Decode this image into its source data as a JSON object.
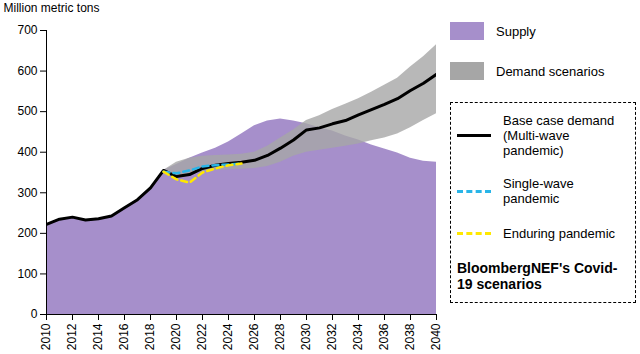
{
  "chart_data": {
    "type": "area",
    "y_label": "Million metric tons",
    "x": [
      2010,
      2011,
      2012,
      2013,
      2014,
      2015,
      2016,
      2017,
      2018,
      2019,
      2020,
      2021,
      2022,
      2023,
      2024,
      2025,
      2026,
      2027,
      2028,
      2029,
      2030,
      2031,
      2032,
      2033,
      2034,
      2035,
      2036,
      2037,
      2038,
      2039,
      2040
    ],
    "xlim": [
      2010,
      2040
    ],
    "xticks": [
      2010,
      2012,
      2014,
      2016,
      2018,
      2020,
      2022,
      2024,
      2026,
      2028,
      2030,
      2032,
      2034,
      2036,
      2038,
      2040
    ],
    "ylim": [
      0,
      700
    ],
    "yticks": [
      0,
      100,
      200,
      300,
      400,
      500,
      600,
      700
    ],
    "grid": false,
    "legend": "right",
    "series": [
      {
        "name": "Supply",
        "type": "area",
        "color": "#a68fcb",
        "values": [
          222,
          235,
          240,
          233,
          236,
          243,
          263,
          283,
          312,
          355,
          370,
          385,
          398,
          410,
          425,
          445,
          465,
          477,
          482,
          477,
          470,
          460,
          452,
          440,
          430,
          418,
          408,
          398,
          385,
          378,
          375
        ]
      },
      {
        "name": "Demand scenarios",
        "type": "band",
        "color": "#a6a6a6",
        "low": [
          null,
          null,
          null,
          null,
          null,
          null,
          null,
          null,
          null,
          355,
          335,
          345,
          352,
          355,
          357,
          358,
          360,
          365,
          375,
          390,
          400,
          405,
          410,
          415,
          420,
          428,
          435,
          445,
          460,
          478,
          495
        ],
        "high": [
          null,
          null,
          null,
          null,
          null,
          null,
          null,
          null,
          null,
          355,
          375,
          385,
          390,
          392,
          393,
          395,
          400,
          415,
          435,
          455,
          478,
          490,
          505,
          518,
          532,
          548,
          565,
          582,
          610,
          635,
          665
        ]
      },
      {
        "name": "Base case demand (Multi-wave pandemic)",
        "type": "line",
        "color": "#000000",
        "line_style": "solid",
        "values": [
          222,
          235,
          240,
          233,
          236,
          243,
          263,
          283,
          312,
          355,
          340,
          345,
          360,
          368,
          372,
          375,
          380,
          392,
          410,
          430,
          455,
          460,
          470,
          478,
          492,
          505,
          518,
          532,
          552,
          570,
          592
        ]
      },
      {
        "name": "Single-wave pandemic",
        "type": "line",
        "color": "#29b5e8",
        "line_style": "dashed",
        "values": [
          null,
          null,
          null,
          null,
          null,
          null,
          null,
          null,
          null,
          352,
          348,
          355,
          365,
          368,
          370,
          372,
          null,
          null,
          null,
          null,
          null,
          null,
          null,
          null,
          null,
          null,
          null,
          null,
          null,
          null,
          null
        ]
      },
      {
        "name": "Enduring pandemic",
        "type": "line",
        "color": "#ffe800",
        "line_style": "dashed",
        "values": [
          null,
          null,
          null,
          null,
          null,
          null,
          null,
          null,
          null,
          352,
          333,
          325,
          350,
          360,
          368,
          372,
          null,
          null,
          null,
          null,
          null,
          null,
          null,
          null,
          null,
          null,
          null,
          null,
          null,
          null,
          null
        ]
      }
    ],
    "annotation": "BloombergNEF's Covid-19 scenarios"
  }
}
